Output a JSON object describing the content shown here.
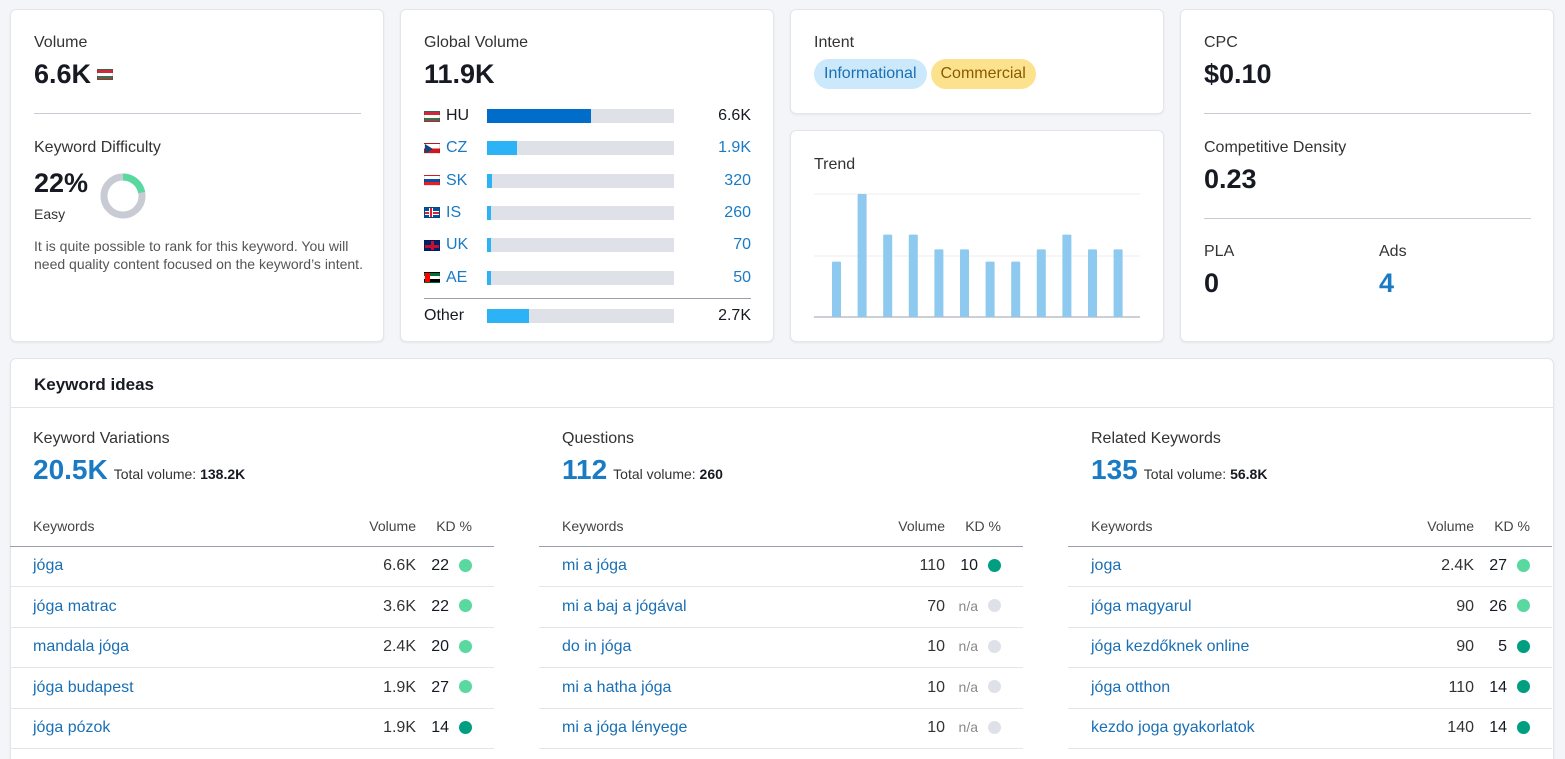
{
  "volume": {
    "label": "Volume",
    "value": "6.6K",
    "flag_icon": "hu-flag-icon"
  },
  "keyword_difficulty": {
    "label": "Keyword Difficulty",
    "value": "22%",
    "level": "Easy",
    "percent": 22,
    "description": "It is quite possible to rank for this keyword. You will need quality content focused on the keyword’s intent."
  },
  "global_volume": {
    "label": "Global Volume",
    "value": "11.9K",
    "countries": [
      {
        "code": "HU",
        "value": "6.6K",
        "share": 0.555,
        "flag": "hu"
      },
      {
        "code": "CZ",
        "value": "1.9K",
        "share": 0.16,
        "flag": "cz"
      },
      {
        "code": "SK",
        "value": "320",
        "share": 0.027,
        "flag": "sk"
      },
      {
        "code": "IS",
        "value": "260",
        "share": 0.022,
        "flag": "is"
      },
      {
        "code": "UK",
        "value": "70",
        "share": 0.006,
        "flag": "uk"
      },
      {
        "code": "AE",
        "value": "50",
        "share": 0.004,
        "flag": "ae"
      }
    ],
    "other": {
      "label": "Other",
      "value": "2.7K",
      "share": 0.227
    }
  },
  "intent": {
    "label": "Intent",
    "tags": [
      "Informational",
      "Commercial"
    ]
  },
  "trend": {
    "label": "Trend",
    "values": [
      0.45,
      1.0,
      0.67,
      0.67,
      0.55,
      0.55,
      0.45,
      0.45,
      0.55,
      0.67,
      0.55,
      0.55
    ]
  },
  "cpc": {
    "label": "CPC",
    "value": "$0.10"
  },
  "competitive_density": {
    "label": "Competitive Density",
    "value": "0.23"
  },
  "pla": {
    "label": "PLA",
    "value": "0"
  },
  "ads": {
    "label": "Ads",
    "value": "4"
  },
  "keyword_ideas": {
    "title": "Keyword ideas",
    "columns_labels": {
      "keywords": "Keywords",
      "volume": "Volume",
      "kd": "KD %",
      "total_volume": "Total volume:"
    },
    "sections": [
      {
        "title": "Keyword Variations",
        "count": "20.5K",
        "total_volume": "138.2K",
        "rows": [
          {
            "keyword": "jóga",
            "volume": "6.6K",
            "kd": "22",
            "dot": "light"
          },
          {
            "keyword": "jóga matrac",
            "volume": "3.6K",
            "kd": "22",
            "dot": "light"
          },
          {
            "keyword": "mandala jóga",
            "volume": "2.4K",
            "kd": "20",
            "dot": "light"
          },
          {
            "keyword": "jóga budapest",
            "volume": "1.9K",
            "kd": "27",
            "dot": "light"
          },
          {
            "keyword": "jóga pózok",
            "volume": "1.9K",
            "kd": "14",
            "dot": "dark"
          }
        ]
      },
      {
        "title": "Questions",
        "count": "112",
        "total_volume": "260",
        "rows": [
          {
            "keyword": "mi a jóga",
            "volume": "110",
            "kd": "10",
            "dot": "dark"
          },
          {
            "keyword": "mi a baj a jógával",
            "volume": "70",
            "kd": "n/a",
            "dot": "na"
          },
          {
            "keyword": "do in jóga",
            "volume": "10",
            "kd": "n/a",
            "dot": "na"
          },
          {
            "keyword": "mi a hatha jóga",
            "volume": "10",
            "kd": "n/a",
            "dot": "na"
          },
          {
            "keyword": "mi a jóga lényege",
            "volume": "10",
            "kd": "n/a",
            "dot": "na"
          }
        ]
      },
      {
        "title": "Related Keywords",
        "count": "135",
        "total_volume": "56.8K",
        "rows": [
          {
            "keyword": "joga",
            "volume": "2.4K",
            "kd": "27",
            "dot": "light"
          },
          {
            "keyword": "jóga magyarul",
            "volume": "90",
            "kd": "26",
            "dot": "light"
          },
          {
            "keyword": "jóga kezdőknek online",
            "volume": "90",
            "kd": "5",
            "dot": "dark"
          },
          {
            "keyword": "jóga otthon",
            "volume": "110",
            "kd": "14",
            "dot": "dark"
          },
          {
            "keyword": "kezdo joga gyakorlatok",
            "volume": "140",
            "kd": "14",
            "dot": "dark"
          }
        ]
      }
    ]
  }
}
